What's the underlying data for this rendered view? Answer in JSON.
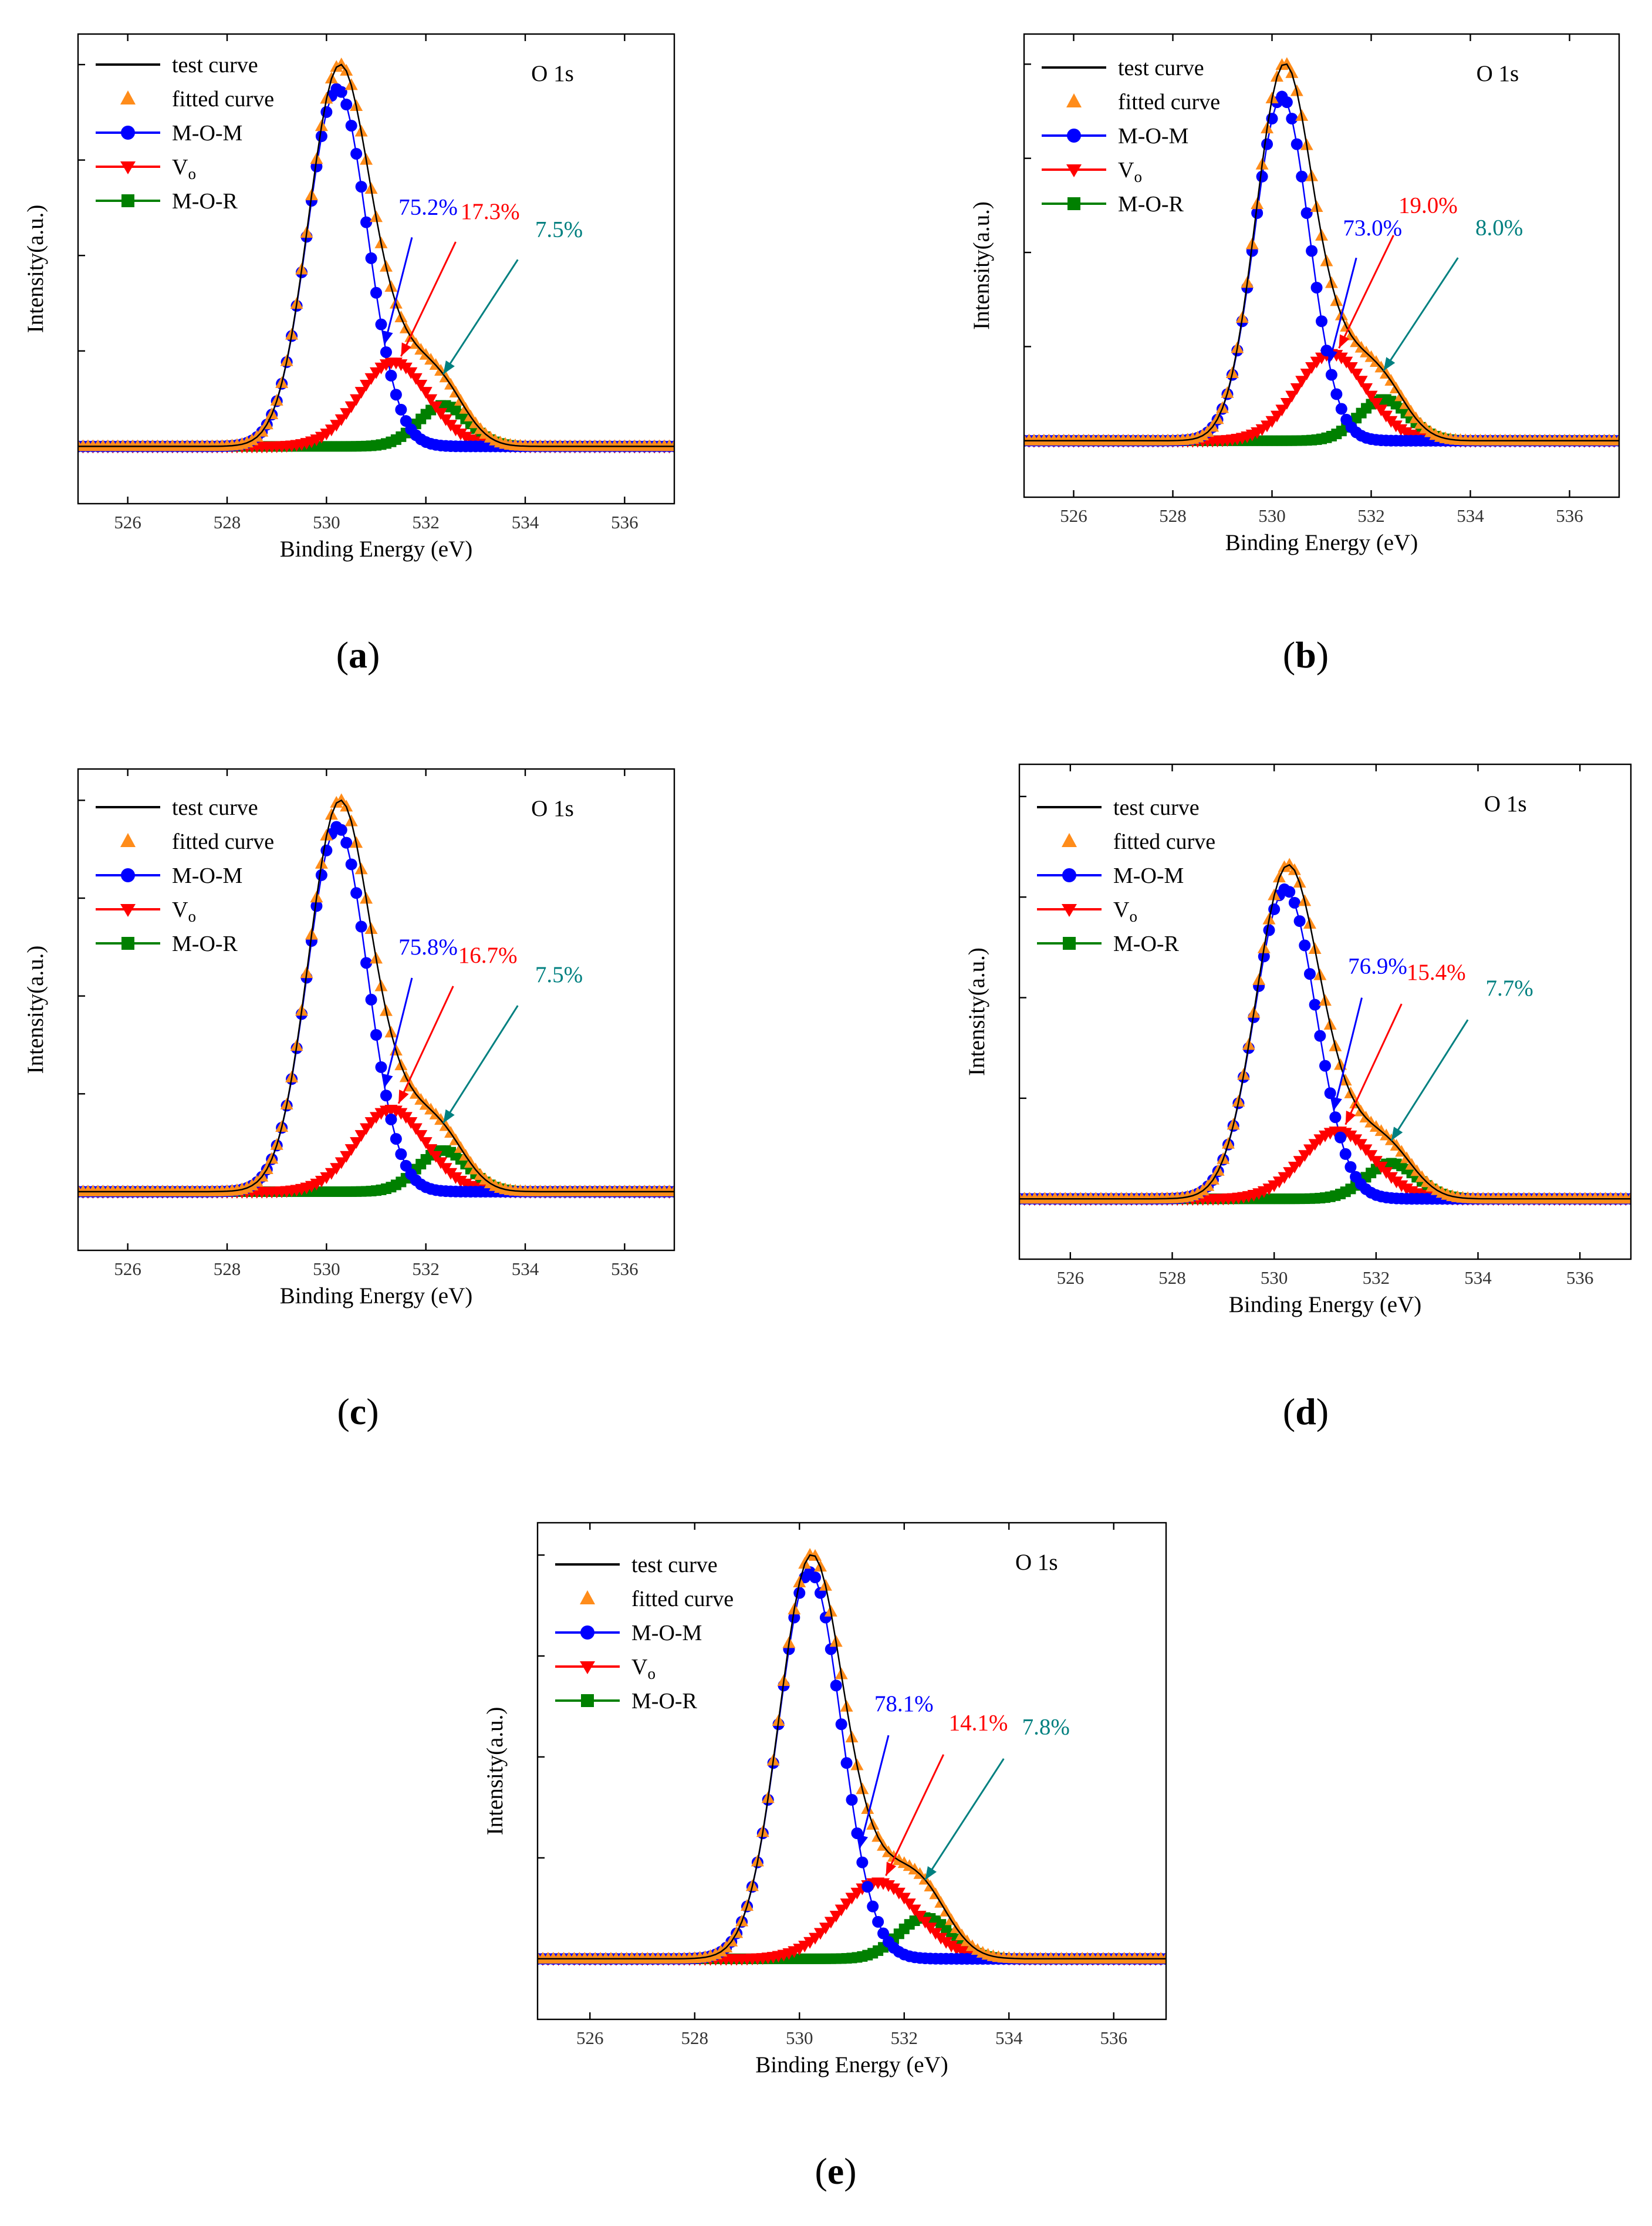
{
  "chart_data": [
    {
      "type": "line",
      "panel_label": "a",
      "core_level": "O 1s",
      "xlabel": "Binding Energy (eV)",
      "ylabel": "Intensity(a.u.)",
      "xlim": [
        525,
        537
      ],
      "ylim": [
        -0.15,
        1.08
      ],
      "xticks": [
        526,
        528,
        530,
        532,
        534,
        536
      ],
      "legend": [
        "test curve",
        "fitted curve",
        "M-O-M",
        "Vo",
        "M-O-R"
      ],
      "components": [
        {
          "name": "M-O-M",
          "center": 530.22,
          "width": 0.6,
          "height": 0.955,
          "percent": "75.2%"
        },
        {
          "name": "Vo",
          "center": 531.35,
          "width": 0.7,
          "height": 0.225,
          "percent": "17.3%"
        },
        {
          "name": "M-O-R",
          "center": 532.35,
          "width": 0.5,
          "height": 0.11,
          "percent": "7.5%"
        }
      ],
      "fitted_peak": {
        "center": 530.3,
        "height": 1.0
      }
    },
    {
      "type": "line",
      "panel_label": "b",
      "core_level": "O 1s",
      "xlabel": "Binding Energy (eV)",
      "ylabel": "Intensity(a.u.)",
      "xlim": [
        525,
        537
      ],
      "ylim": [
        -0.15,
        1.08
      ],
      "xticks": [
        526,
        528,
        530,
        532,
        534,
        536
      ],
      "legend": [
        "test curve",
        "fitted curve",
        "M-O-M",
        "Vo",
        "M-O-R"
      ],
      "components": [
        {
          "name": "M-O-M",
          "center": 530.2,
          "width": 0.55,
          "height": 0.93,
          "percent": "73.0%"
        },
        {
          "name": "Vo",
          "center": 531.2,
          "width": 0.7,
          "height": 0.235,
          "percent": "19.0%"
        },
        {
          "name": "M-O-R",
          "center": 532.25,
          "width": 0.5,
          "height": 0.112,
          "percent": "8.0%"
        }
      ],
      "fitted_peak": {
        "center": 530.3,
        "height": 1.0
      }
    },
    {
      "type": "line",
      "panel_label": "c",
      "core_level": "O 1s",
      "xlabel": "Binding Energy (eV)",
      "ylabel": "Intensity(a.u.)",
      "xlim": [
        525,
        537
      ],
      "ylim": [
        -0.15,
        1.08
      ],
      "xticks": [
        526,
        528,
        530,
        532,
        534,
        536
      ],
      "legend": [
        "test curve",
        "fitted curve",
        "M-O-M",
        "Vo",
        "M-O-R"
      ],
      "components": [
        {
          "name": "M-O-M",
          "center": 530.22,
          "width": 0.6,
          "height": 0.955,
          "percent": "75.8%"
        },
        {
          "name": "Vo",
          "center": 531.3,
          "width": 0.7,
          "height": 0.215,
          "percent": "16.7%"
        },
        {
          "name": "M-O-R",
          "center": 532.35,
          "width": 0.5,
          "height": 0.108,
          "percent": "7.5%"
        }
      ],
      "fitted_peak": {
        "center": 530.3,
        "height": 1.0
      }
    },
    {
      "type": "line",
      "panel_label": "d",
      "core_level": "O 1s",
      "xlabel": "Binding Energy (eV)",
      "ylabel": "Intensity(a.u.)",
      "xlim": [
        525,
        537
      ],
      "ylim": [
        -0.15,
        1.08
      ],
      "xticks": [
        526,
        528,
        530,
        532,
        534,
        536
      ],
      "legend": [
        "test curve",
        "fitted curve",
        "M-O-M",
        "Vo",
        "M-O-R"
      ],
      "components": [
        {
          "name": "M-O-M",
          "center": 530.22,
          "width": 0.6,
          "height": 0.8,
          "percent": "76.9%"
        },
        {
          "name": "Vo",
          "center": 531.25,
          "width": 0.7,
          "height": 0.175,
          "percent": "15.4%"
        },
        {
          "name": "M-O-R",
          "center": 532.3,
          "width": 0.5,
          "height": 0.092,
          "percent": "7.7%"
        }
      ],
      "fitted_peak": {
        "center": 530.3,
        "height": 0.83
      }
    },
    {
      "type": "line",
      "panel_label": "e",
      "core_level": "O 1s",
      "xlabel": "Binding Energy (eV)",
      "ylabel": "Intensity(a.u.)",
      "xlim": [
        525,
        537
      ],
      "ylim": [
        -0.15,
        1.08
      ],
      "xticks": [
        526,
        528,
        530,
        532,
        534,
        536
      ],
      "legend": [
        "test curve",
        "fitted curve",
        "M-O-M",
        "Vo",
        "M-O-R"
      ],
      "components": [
        {
          "name": "M-O-M",
          "center": 530.2,
          "width": 0.6,
          "height": 0.985,
          "percent": "78.1%"
        },
        {
          "name": "Vo",
          "center": 531.5,
          "width": 0.75,
          "height": 0.195,
          "percent": "14.1%"
        },
        {
          "name": "M-O-R",
          "center": 532.4,
          "width": 0.5,
          "height": 0.105,
          "percent": "7.8%"
        }
      ],
      "fitted_peak": {
        "center": 530.3,
        "height": 1.0
      }
    }
  ],
  "colors": {
    "test": "#000000",
    "fitted": "#ff8c1a",
    "mom": "#0000ff",
    "vo": "#ff0000",
    "mor": "#008000",
    "mor_label": "#008080"
  }
}
